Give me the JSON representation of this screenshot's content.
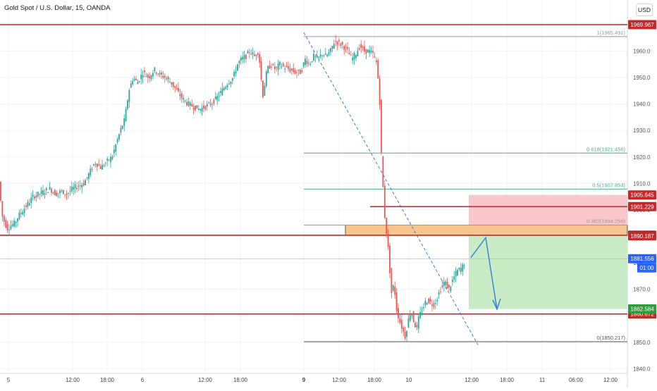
{
  "header": {
    "title": "Gold Spot / U.S. Dollar, 15, OANDA",
    "currency_button": "USD"
  },
  "colors": {
    "up": "#26a69a",
    "down": "#ef5350",
    "level": "#c62828",
    "fib_green": "#4caf8c",
    "grid": "#f0f3fa",
    "stop_zone": "#f9c7c9",
    "target_zone": "#c9ecc6",
    "order_block": "#f7c48e",
    "arrow": "#2e7fd6",
    "price_tag": "#2962ff",
    "target_tag": "#2e9b3a",
    "last_tag": "#131722"
  },
  "chart_data": {
    "type": "candlestick",
    "y_range": [
      1840,
      1972
    ],
    "x_ticks": [
      "5",
      "12:00",
      "18:00",
      "6",
      "12:00",
      "18:00",
      "9",
      "12:00",
      "18:00",
      "10",
      "12:00",
      "18:00",
      "11",
      "06:00",
      "12:00"
    ],
    "y_ticks": [
      1840,
      1850,
      1860,
      1870,
      1880,
      1890,
      1900,
      1910,
      1920,
      1930,
      1940,
      1950,
      1960
    ],
    "price_path": [
      [
        0,
        1910
      ],
      [
        4,
        1898
      ],
      [
        8,
        1895
      ],
      [
        12,
        1893
      ],
      [
        16,
        1894
      ],
      [
        22,
        1895
      ],
      [
        28,
        1898
      ],
      [
        34,
        1900
      ],
      [
        40,
        1902
      ],
      [
        48,
        1905
      ],
      [
        56,
        1906
      ],
      [
        64,
        1907
      ],
      [
        72,
        1908
      ],
      [
        80,
        1906
      ],
      [
        88,
        1907
      ],
      [
        96,
        1906
      ],
      [
        104,
        1908
      ],
      [
        112,
        1909
      ],
      [
        120,
        1910
      ],
      [
        128,
        1914
      ],
      [
        136,
        1918
      ],
      [
        144,
        1916
      ],
      [
        152,
        1918
      ],
      [
        160,
        1920
      ],
      [
        166,
        1925
      ],
      [
        172,
        1930
      ],
      [
        178,
        1934
      ],
      [
        184,
        1945
      ],
      [
        190,
        1950
      ],
      [
        196,
        1948
      ],
      [
        204,
        1952
      ],
      [
        212,
        1950
      ],
      [
        220,
        1953
      ],
      [
        228,
        1951
      ],
      [
        236,
        1950
      ],
      [
        244,
        1948
      ],
      [
        252,
        1945
      ],
      [
        260,
        1942
      ],
      [
        268,
        1940
      ],
      [
        276,
        1939
      ],
      [
        284,
        1938
      ],
      [
        292,
        1939
      ],
      [
        300,
        1940
      ],
      [
        308,
        1942
      ],
      [
        316,
        1945
      ],
      [
        324,
        1948
      ],
      [
        332,
        1950
      ],
      [
        338,
        1955
      ],
      [
        344,
        1957
      ],
      [
        350,
        1958
      ],
      [
        356,
        1960
      ],
      [
        362,
        1958
      ],
      [
        368,
        1960
      ],
      [
        374,
        1943
      ],
      [
        380,
        1953
      ],
      [
        386,
        1955
      ],
      [
        392,
        1953
      ],
      [
        398,
        1955
      ],
      [
        404,
        1954
      ],
      [
        412,
        1953
      ],
      [
        420,
        1952
      ],
      [
        428,
        1952
      ],
      [
        434,
        1957
      ],
      [
        440,
        1955
      ],
      [
        446,
        1958
      ],
      [
        452,
        1957
      ],
      [
        458,
        1959
      ],
      [
        464,
        1958
      ],
      [
        470,
        1960
      ],
      [
        476,
        1964
      ],
      [
        482,
        1963
      ],
      [
        488,
        1962
      ],
      [
        494,
        1960
      ],
      [
        500,
        1957
      ],
      [
        506,
        1959
      ],
      [
        512,
        1962
      ],
      [
        518,
        1960
      ],
      [
        524,
        1960
      ],
      [
        530,
        1959
      ],
      [
        536,
        1955
      ],
      [
        540,
        1940
      ],
      [
        542,
        1922
      ],
      [
        544,
        1912
      ],
      [
        546,
        1900
      ],
      [
        548,
        1895
      ],
      [
        550,
        1890
      ],
      [
        552,
        1885
      ],
      [
        554,
        1878
      ],
      [
        556,
        1868
      ],
      [
        560,
        1872
      ],
      [
        564,
        1862
      ],
      [
        568,
        1858
      ],
      [
        572,
        1855
      ],
      [
        576,
        1852
      ],
      [
        580,
        1858
      ],
      [
        584,
        1862
      ],
      [
        588,
        1858
      ],
      [
        592,
        1855
      ],
      [
        596,
        1860
      ],
      [
        600,
        1862
      ],
      [
        604,
        1865
      ],
      [
        608,
        1866
      ],
      [
        612,
        1865
      ],
      [
        616,
        1864
      ],
      [
        620,
        1866
      ],
      [
        626,
        1870
      ],
      [
        632,
        1873
      ],
      [
        638,
        1870
      ],
      [
        644,
        1874
      ],
      [
        650,
        1877
      ],
      [
        656,
        1878
      ],
      [
        660,
        1880
      ]
    ],
    "levels": [
      {
        "price": 1969.967,
        "label": "1969.967",
        "style": "red-line",
        "tag_bg": "#c62828"
      },
      {
        "price": 1890.408,
        "label": "1890.408",
        "style": "red-line",
        "tag_bg": "#131722"
      },
      {
        "price": 1860.672,
        "label": "1860.672",
        "style": "red-line",
        "tag_bg": "#c62828"
      },
      {
        "price": 1901.229,
        "label": "1901.229",
        "style": "red-short",
        "tag_bg": "#c62828"
      },
      {
        "price": 1905.645,
        "label": "1905.645",
        "style": "zone-top",
        "tag_bg": "#c62828"
      },
      {
        "price": 1890.187,
        "label": "1890.187",
        "style": "tag-only",
        "tag_bg": "#c62828"
      },
      {
        "price": 1881.556,
        "label": "1881.556",
        "style": "last-price",
        "tag_bg": "#2962ff"
      },
      {
        "price": 1862.584,
        "label": "1862.584",
        "style": "tag-only",
        "tag_bg": "#2e9b3a"
      }
    ],
    "countdown": "01:00",
    "fib_levels": [
      {
        "price": 1965.491,
        "label": "1(1965.491)",
        "color": "#999999"
      },
      {
        "price": 1921.456,
        "label": "0.618(1921.456)",
        "color": "#4caf8c"
      },
      {
        "price": 1907.854,
        "label": "0.5(1907.854)",
        "color": "#4caf8c"
      },
      {
        "price": 1894.256,
        "label": "0.382(1894.256)",
        "color": "#999999"
      },
      {
        "price": 1850.217,
        "label": "0(1850.217)",
        "color": "#555555"
      }
    ],
    "stop_zone": [
      1890.408,
      1905.645
    ],
    "target_zone": [
      1862.584,
      1890.408
    ],
    "order_block": [
      1890.408,
      1894.256
    ]
  }
}
